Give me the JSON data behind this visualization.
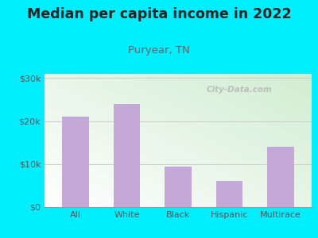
{
  "title": "Median per capita income in 2022",
  "subtitle": "Puryear, TN",
  "categories": [
    "All",
    "White",
    "Black",
    "Hispanic",
    "Multirace"
  ],
  "values": [
    21000,
    24000,
    9500,
    6000,
    14000
  ],
  "bar_color": "#c4a8d8",
  "title_fontsize": 12.5,
  "subtitle_fontsize": 9.5,
  "title_color": "#222222",
  "subtitle_color": "#666666",
  "tick_color": "#555555",
  "background_outer": "#00eeff",
  "ylim": [
    0,
    31000
  ],
  "yticks": [
    0,
    10000,
    20000,
    30000
  ],
  "ytick_labels": [
    "$0",
    "$10k",
    "$20k",
    "$30k"
  ],
  "watermark": "City-Data.com",
  "grid_color": "#cccccc"
}
